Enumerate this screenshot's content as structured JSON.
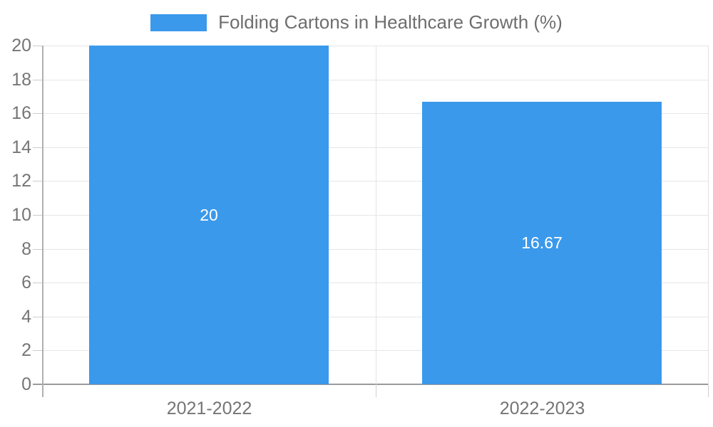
{
  "legend": {
    "label": "Folding Cartons in Healthcare Growth (%)"
  },
  "chart_data": {
    "type": "bar",
    "title": "",
    "xlabel": "",
    "ylabel": "",
    "categories": [
      "2021-2022",
      "2022-2023"
    ],
    "series": [
      {
        "name": "Folding Cartons in Healthcare Growth (%)",
        "values": [
          20,
          16.67
        ],
        "value_labels": [
          "20",
          "16.67"
        ]
      }
    ],
    "ylim": [
      0,
      20
    ],
    "ytick_step": 2,
    "ytick_labels": [
      "0",
      "2",
      "4",
      "6",
      "8",
      "10",
      "12",
      "14",
      "16",
      "18",
      "20"
    ],
    "grid": true,
    "legend_position": "top"
  },
  "colors": {
    "bar": "#3A99EB",
    "gridline": "#e6e6e6",
    "axis_line": "#9a9a9a",
    "y_axis_line": "#b0b0b0",
    "tick_text": "#757575",
    "legend_text": "#6e6e6e",
    "data_label": "#ffffff",
    "background": "#ffffff"
  }
}
